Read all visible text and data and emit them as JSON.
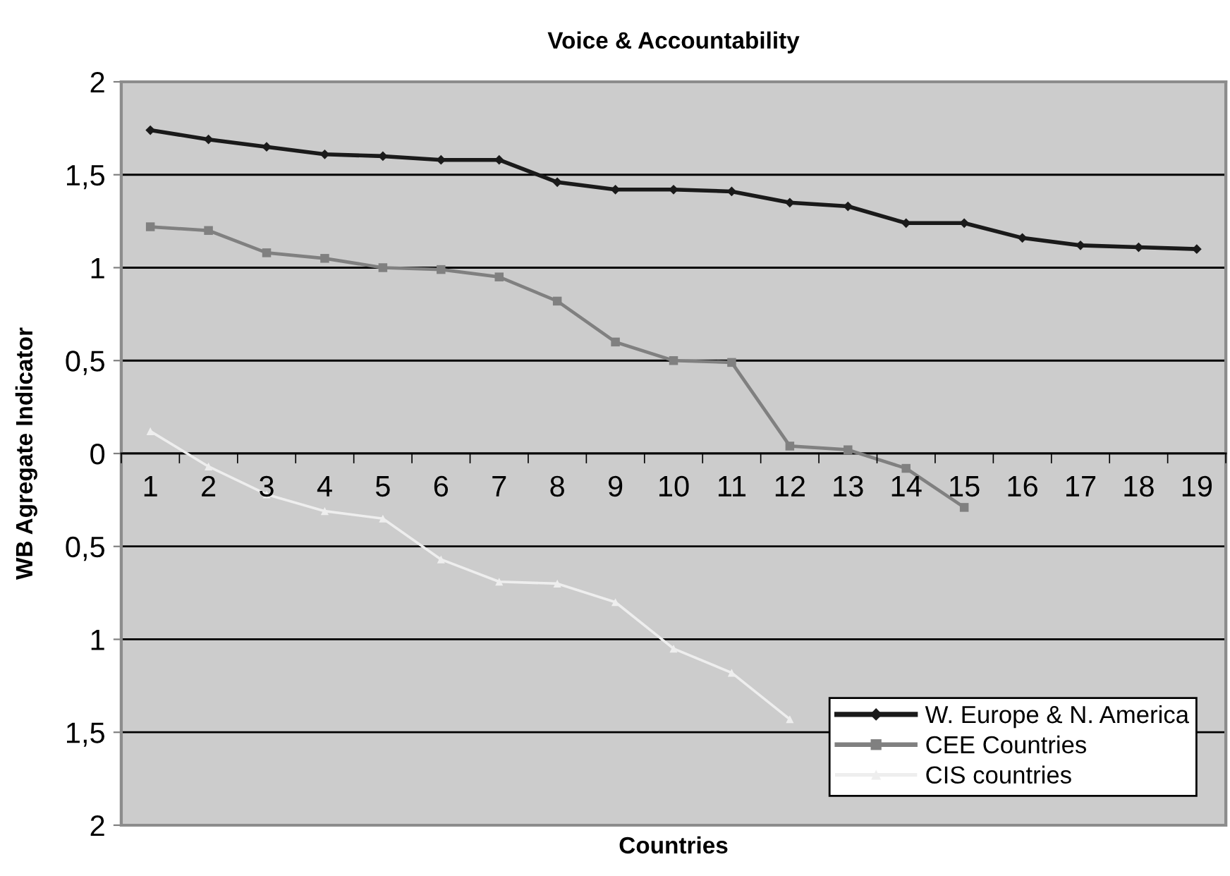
{
  "chart_data": {
    "type": "line",
    "title": "Voice & Accountability",
    "xlabel": "Countries",
    "ylabel": "WB Agregate Indicator",
    "categories": [
      "1",
      "2",
      "3",
      "4",
      "5",
      "6",
      "7",
      "8",
      "9",
      "10",
      "11",
      "12",
      "13",
      "14",
      "15",
      "16",
      "17",
      "18",
      "19"
    ],
    "series": [
      {
        "name": "W. Europe & N. America",
        "color": "#1a1a1a",
        "marker": "diamond",
        "values": [
          1.74,
          1.69,
          1.65,
          1.61,
          1.6,
          1.58,
          1.58,
          1.46,
          1.42,
          1.42,
          1.41,
          1.35,
          1.33,
          1.24,
          1.24,
          1.16,
          1.12,
          1.11,
          1.1
        ]
      },
      {
        "name": "CEE Countries",
        "color": "#808080",
        "marker": "square",
        "values": [
          1.22,
          1.2,
          1.08,
          1.05,
          1.0,
          0.99,
          0.95,
          0.82,
          0.6,
          0.5,
          0.49,
          0.04,
          0.02,
          -0.08,
          -0.29,
          null,
          null,
          null,
          null
        ]
      },
      {
        "name": "CIS countries",
        "color": "#eeeeee",
        "marker": "triangle",
        "values": [
          0.12,
          -0.07,
          -0.22,
          -0.31,
          -0.35,
          -0.57,
          -0.69,
          -0.7,
          -0.8,
          -1.05,
          -1.18,
          -1.43,
          null,
          null,
          null,
          null,
          null,
          null,
          null
        ]
      }
    ],
    "ylim": [
      -2,
      2
    ],
    "yticks": [
      {
        "value": -2,
        "label": "2"
      },
      {
        "value": -1.5,
        "label": "1,5"
      },
      {
        "value": -1,
        "label": "1"
      },
      {
        "value": -0.5,
        "label": "0,5"
      },
      0,
      {
        "value": 0.5,
        "label": "0,5"
      },
      1,
      {
        "value": 1.5,
        "label": "1,5"
      },
      2
    ],
    "grid": "y",
    "legend": "bottom right",
    "line_style": "solid"
  }
}
